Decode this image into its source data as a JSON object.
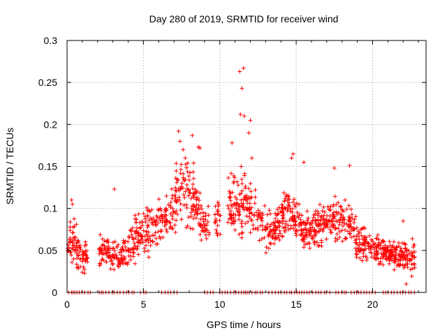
{
  "chart_data": {
    "type": "scatter",
    "title": "Day 280 of 2019, SRMTID for receiver wind",
    "xlabel": "GPS time / hours",
    "ylabel": "SRMTID / TECUs",
    "xlim": [
      0,
      23.5
    ],
    "ylim": [
      0,
      0.3
    ],
    "grid": true,
    "marker": "+",
    "color": "#ff0000",
    "x_ticks": [
      {
        "value": 0,
        "label": "0"
      },
      {
        "value": 5,
        "label": "5"
      },
      {
        "value": 10,
        "label": "10"
      },
      {
        "value": 15,
        "label": "15"
      },
      {
        "value": 20,
        "label": "20"
      }
    ],
    "y_ticks": [
      {
        "value": 0,
        "label": "0"
      },
      {
        "value": 0.05,
        "label": "0.05"
      },
      {
        "value": 0.1,
        "label": "0.1"
      },
      {
        "value": 0.15,
        "label": "0.15"
      },
      {
        "value": 0.2,
        "label": "0.2"
      },
      {
        "value": 0.25,
        "label": "0.25"
      },
      {
        "value": 0.3,
        "label": "0.3"
      }
    ],
    "series": [
      {
        "name": "SRMTID",
        "envelope": [
          {
            "x": 0.0,
            "center": 0.055,
            "spread": 0.015
          },
          {
            "x": 0.4,
            "center": 0.06,
            "spread": 0.03
          },
          {
            "x": 1.0,
            "center": 0.04,
            "spread": 0.015
          },
          {
            "x": 2.5,
            "center": 0.05,
            "spread": 0.02
          },
          {
            "x": 3.5,
            "center": 0.04,
            "spread": 0.015
          },
          {
            "x": 4.5,
            "center": 0.065,
            "spread": 0.03
          },
          {
            "x": 5.5,
            "center": 0.075,
            "spread": 0.025
          },
          {
            "x": 6.5,
            "center": 0.085,
            "spread": 0.03
          },
          {
            "x": 7.5,
            "center": 0.12,
            "spread": 0.045
          },
          {
            "x": 8.3,
            "center": 0.11,
            "spread": 0.04
          },
          {
            "x": 9.0,
            "center": 0.075,
            "spread": 0.02
          },
          {
            "x": 10.0,
            "center": 0.09,
            "spread": 0.03
          },
          {
            "x": 11.0,
            "center": 0.1,
            "spread": 0.035
          },
          {
            "x": 11.7,
            "center": 0.11,
            "spread": 0.04
          },
          {
            "x": 12.5,
            "center": 0.09,
            "spread": 0.03
          },
          {
            "x": 13.5,
            "center": 0.07,
            "spread": 0.02
          },
          {
            "x": 14.5,
            "center": 0.1,
            "spread": 0.03
          },
          {
            "x": 15.5,
            "center": 0.07,
            "spread": 0.02
          },
          {
            "x": 16.5,
            "center": 0.08,
            "spread": 0.025
          },
          {
            "x": 17.5,
            "center": 0.09,
            "spread": 0.03
          },
          {
            "x": 18.5,
            "center": 0.08,
            "spread": 0.025
          },
          {
            "x": 19.5,
            "center": 0.055,
            "spread": 0.02
          },
          {
            "x": 20.5,
            "center": 0.05,
            "spread": 0.015
          },
          {
            "x": 21.5,
            "center": 0.045,
            "spread": 0.015
          },
          {
            "x": 22.5,
            "center": 0.045,
            "spread": 0.02
          }
        ],
        "outliers": [
          {
            "x": 0.3,
            "y": 0.11
          },
          {
            "x": 0.35,
            "y": 0.105
          },
          {
            "x": 3.1,
            "y": 0.123
          },
          {
            "x": 7.3,
            "y": 0.192
          },
          {
            "x": 7.4,
            "y": 0.18
          },
          {
            "x": 7.6,
            "y": 0.17
          },
          {
            "x": 8.2,
            "y": 0.187
          },
          {
            "x": 8.6,
            "y": 0.173
          },
          {
            "x": 8.7,
            "y": 0.172
          },
          {
            "x": 11.3,
            "y": 0.263
          },
          {
            "x": 11.55,
            "y": 0.267
          },
          {
            "x": 11.45,
            "y": 0.243
          },
          {
            "x": 11.35,
            "y": 0.212
          },
          {
            "x": 11.6,
            "y": 0.21
          },
          {
            "x": 12.0,
            "y": 0.205
          },
          {
            "x": 11.9,
            "y": 0.19
          },
          {
            "x": 10.8,
            "y": 0.178
          },
          {
            "x": 11.4,
            "y": 0.15
          },
          {
            "x": 12.1,
            "y": 0.16
          },
          {
            "x": 14.8,
            "y": 0.165
          },
          {
            "x": 14.7,
            "y": 0.16
          },
          {
            "x": 15.5,
            "y": 0.155
          },
          {
            "x": 17.5,
            "y": 0.148
          },
          {
            "x": 18.5,
            "y": 0.151
          },
          {
            "x": 22.0,
            "y": 0.085
          },
          {
            "x": 22.2,
            "y": 0.01
          }
        ],
        "zero_segments": [
          [
            0.1,
            1.6
          ],
          [
            2.1,
            4.5
          ],
          [
            4.8,
            5.2
          ],
          [
            6.2,
            6.8
          ],
          [
            7.0,
            7.4
          ],
          [
            9.0,
            9.6
          ],
          [
            10.0,
            12.8
          ],
          [
            13.2,
            17.2
          ],
          [
            17.6,
            18.3
          ],
          [
            18.6,
            20.4
          ],
          [
            20.7,
            22.8
          ]
        ]
      }
    ]
  }
}
